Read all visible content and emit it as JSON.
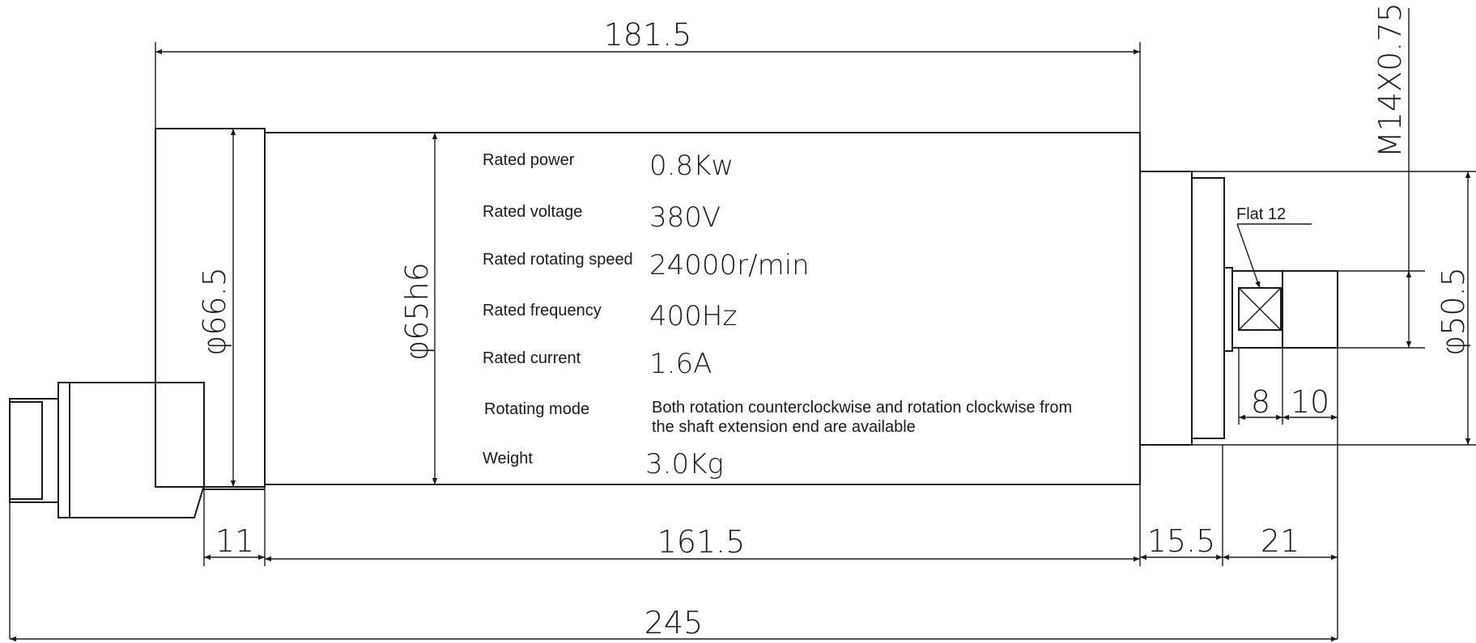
{
  "dimensions": {
    "overall_top": "181.5",
    "thread": "M14X0.75",
    "dia_rear": "φ66.5",
    "dia_body": "φ65h6",
    "dia_flange": "φ50.5",
    "flat": "Flat 12",
    "flat_len": "8",
    "shaft_len": "10",
    "seg_11": "11",
    "seg_body": "161.5",
    "seg_15_5": "15.5",
    "seg_21": "21",
    "overall_bottom": "245"
  },
  "specs": [
    {
      "label": "Rated power",
      "value": "0.8Kw"
    },
    {
      "label": "Rated voltage",
      "value": "380V"
    },
    {
      "label": "Rated rotating speed",
      "value": "24000r/min"
    },
    {
      "label": "Rated frequency",
      "value": "400Hz"
    },
    {
      "label": "Rated current",
      "value": "1.6A"
    },
    {
      "label": "Rotating mode",
      "value_line1": "Both rotation counterclockwise and rotation clockwise from",
      "value_line2": "the shaft extension end are available"
    },
    {
      "label": "Weight",
      "value": "3.0Kg"
    }
  ]
}
